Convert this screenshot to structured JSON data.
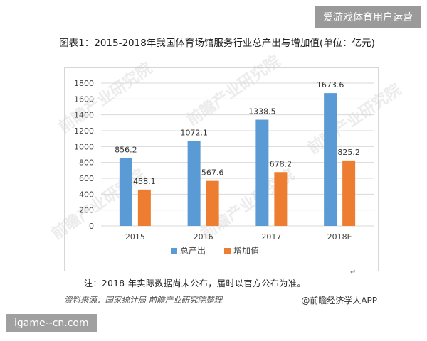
{
  "header": {
    "badge": "爱游戏体育用户运营"
  },
  "figure": {
    "title": "图表1：2015-2018年我国体育场馆服务行业总产出与增加值(单位：亿元)",
    "note": "注：2018 年实际数据尚未公布，届时以官方公布为准。",
    "note_mark": "↵",
    "source": "资料来源：国家统计局 前瞻产业研究院整理",
    "credit": "@前瞻经济学人APP",
    "watermark": "前瞻产业研究院"
  },
  "footer": {
    "badge": "igame--cn.com"
  },
  "colors": {
    "series1": "#5b9bd5",
    "series2": "#ed7d31",
    "grid": "#d9d9d9"
  },
  "chart_data": {
    "type": "bar",
    "categories": [
      "2015",
      "2016",
      "2017",
      "2018E"
    ],
    "series": [
      {
        "name": "总产出",
        "values": [
          856.2,
          1072.1,
          1338.5,
          1673.6
        ]
      },
      {
        "name": "增加值",
        "values": [
          458.1,
          567.6,
          678.2,
          825.2
        ]
      }
    ],
    "ylim": [
      0,
      1800
    ],
    "yticks": [
      0,
      200,
      400,
      600,
      800,
      1000,
      1200,
      1400,
      1600,
      1800
    ],
    "grid": true,
    "legend": "bottom"
  }
}
